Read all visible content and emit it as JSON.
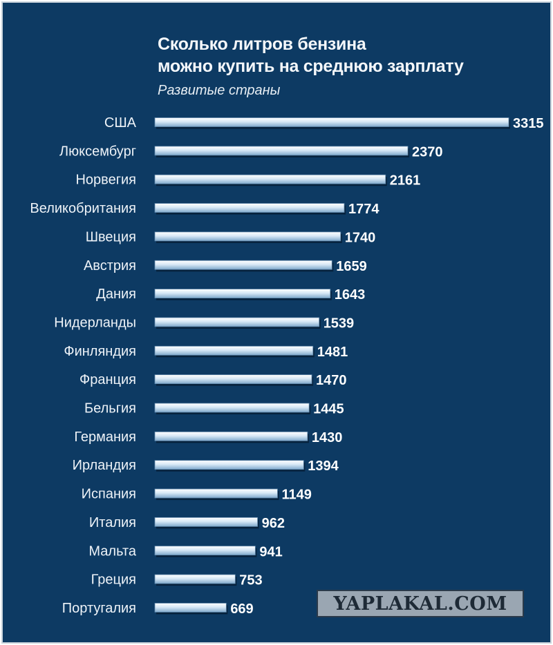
{
  "chart_data": {
    "type": "bar",
    "orientation": "horizontal",
    "title": "Сколько литров бензина\nможно купить на среднюю зарплату",
    "subtitle": "Развитые страны",
    "categories": [
      "США",
      "Люксембург",
      "Норвегия",
      "Великобритания",
      "Швеция",
      "Австрия",
      "Дания",
      "Нидерланды",
      "Финляндия",
      "Франция",
      "Бельгия",
      "Германия",
      "Ирландия",
      "Испания",
      "Италия",
      "Мальта",
      "Греция",
      "Португалия"
    ],
    "values": [
      3315,
      2370,
      2161,
      1774,
      1740,
      1659,
      1643,
      1539,
      1481,
      1470,
      1445,
      1430,
      1394,
      1149,
      962,
      941,
      753,
      669
    ],
    "xlim": [
      0,
      3315
    ],
    "grid": false,
    "legend": "none",
    "bar_color": "#cfe2f2",
    "background_color": "#0d3a63"
  },
  "watermark": "YAPLAKAL.COM"
}
